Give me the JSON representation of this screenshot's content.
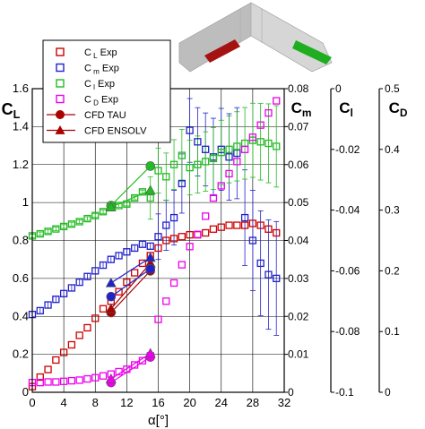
{
  "chart_data": {
    "type": "scatter",
    "xlabel": "α[°]",
    "x_ticks": [
      "0",
      "4",
      "8",
      "12",
      "16",
      "20",
      "24",
      "28",
      "32"
    ],
    "xlim": [
      0,
      32
    ],
    "axes": {
      "CL": {
        "label_main": "C",
        "label_sub": "L",
        "ylim": [
          0,
          1.6
        ],
        "ticks": [
          "0",
          "0.2",
          "0.4",
          "0.6",
          "0.8",
          "1",
          "1.2",
          "1.4",
          "1.6"
        ]
      },
      "Cm": {
        "label_main": "C",
        "label_sub": "m",
        "ylim": [
          0,
          0.08
        ],
        "ticks": [
          "0",
          "0.01",
          "0.02",
          "0.03",
          "0.04",
          "0.05",
          "0.06",
          "0.07",
          "0.08"
        ]
      },
      "Cl": {
        "label_main": "C",
        "label_sub": "l",
        "ylim": [
          -0.1,
          0
        ],
        "ticks": [
          "-0.1",
          "-0.08",
          "-0.06",
          "-0.04",
          "-0.02",
          "0"
        ]
      },
      "CD": {
        "label_main": "C",
        "label_sub": "D",
        "ylim": [
          0,
          0.5
        ],
        "ticks": [
          "0",
          "0.1",
          "0.2",
          "0.3",
          "0.4",
          "0.5"
        ]
      }
    },
    "legend": {
      "placement": "top-left",
      "entries": [
        {
          "main": "C",
          "sub": "L",
          "rest": " Exp",
          "color": "#cc0000",
          "marker": "square"
        },
        {
          "main": "C",
          "sub": "m",
          "rest": " Exp",
          "color": "#2222cc",
          "marker": "square"
        },
        {
          "main": "C",
          "sub": "l",
          "rest": " Exp",
          "color": "#22bb22",
          "marker": "square"
        },
        {
          "main": "C",
          "sub": "D",
          "rest": " Exp",
          "color": "#ee00ee",
          "marker": "square"
        },
        {
          "main": "CFD TAU",
          "sub": "",
          "rest": "",
          "color": "#aa0000",
          "marker": "circle-line"
        },
        {
          "main": "CFD ENSOLV",
          "sub": "",
          "rest": "",
          "color": "#aa0000",
          "marker": "triangle-line"
        }
      ]
    },
    "series": [
      {
        "name": "CL Exp",
        "axis": "CL",
        "color": "#cc0000",
        "marker": "square",
        "x": [
          0,
          1,
          2,
          3,
          4,
          5,
          6,
          7,
          8,
          9,
          10,
          11,
          12,
          13,
          14,
          15,
          16,
          17,
          18,
          19,
          20,
          21,
          22,
          23,
          24,
          25,
          26,
          27,
          28,
          29,
          30,
          31
        ],
        "y": [
          0.03,
          0.08,
          0.12,
          0.17,
          0.21,
          0.25,
          0.3,
          0.34,
          0.39,
          0.44,
          0.48,
          0.53,
          0.58,
          0.63,
          0.68,
          0.72,
          0.76,
          0.8,
          0.81,
          0.82,
          0.83,
          0.83,
          0.84,
          0.86,
          0.87,
          0.88,
          0.88,
          0.88,
          0.89,
          0.88,
          0.86,
          0.84
        ]
      },
      {
        "name": "Cm Exp",
        "axis": "Cm",
        "color": "#2222cc",
        "marker": "square",
        "x": [
          0,
          1,
          2,
          3,
          4,
          5,
          6,
          7,
          8,
          9,
          10,
          11,
          12,
          13,
          14,
          15,
          16,
          17,
          18,
          19,
          20,
          21,
          22,
          23,
          24,
          25,
          26,
          27,
          28,
          29,
          30,
          31
        ],
        "y": [
          0.0205,
          0.0215,
          0.023,
          0.0245,
          0.026,
          0.0275,
          0.029,
          0.0305,
          0.032,
          0.0335,
          0.035,
          0.036,
          0.037,
          0.038,
          0.039,
          0.0385,
          0.041,
          0.044,
          0.046,
          0.055,
          0.069,
          0.066,
          0.064,
          0.062,
          0.064,
          0.062,
          0.063,
          0.046,
          0.04,
          0.034,
          0.031,
          0.03
        ]
      },
      {
        "name": "Cl Exp",
        "axis": "Cl",
        "color": "#22bb22",
        "marker": "square",
        "x": [
          0,
          1,
          2,
          3,
          4,
          5,
          6,
          7,
          8,
          9,
          10,
          11,
          12,
          13,
          14,
          15,
          16,
          17,
          18,
          19,
          20,
          21,
          22,
          23,
          24,
          25,
          26,
          27,
          28,
          29,
          30,
          31
        ],
        "y": [
          -0.0485,
          -0.0478,
          -0.047,
          -0.0462,
          -0.0454,
          -0.0446,
          -0.0438,
          -0.0428,
          -0.0418,
          -0.0405,
          -0.0392,
          -0.0385,
          -0.038,
          -0.036,
          -0.034,
          -0.036,
          -0.027,
          -0.029,
          -0.025,
          -0.022,
          -0.026,
          -0.025,
          -0.024,
          -0.023,
          -0.021,
          -0.02,
          -0.019,
          -0.018,
          -0.017,
          -0.0175,
          -0.018,
          -0.019
        ]
      },
      {
        "name": "CD Exp",
        "axis": "CD",
        "color": "#ee00ee",
        "marker": "square",
        "x": [
          0,
          1,
          2,
          3,
          4,
          5,
          6,
          7,
          8,
          9,
          10,
          11,
          12,
          13,
          14,
          15,
          16,
          17,
          18,
          19,
          20,
          21,
          22,
          23,
          24,
          25,
          26,
          27,
          28,
          29,
          30,
          31
        ],
        "y": [
          0.016,
          0.016,
          0.017,
          0.017,
          0.018,
          0.019,
          0.02,
          0.022,
          0.024,
          0.027,
          0.03,
          0.034,
          0.038,
          0.045,
          0.052,
          0.06,
          0.12,
          0.15,
          0.18,
          0.21,
          0.24,
          0.26,
          0.29,
          0.32,
          0.34,
          0.36,
          0.38,
          0.4,
          0.42,
          0.44,
          0.46,
          0.48
        ]
      },
      {
        "name": "CFD TAU",
        "axis": "CL",
        "color": "#aa0000",
        "marker": "circle-line",
        "points": [
          {
            "x": 10,
            "y": 0.42
          },
          {
            "x": 15,
            "y": 0.64
          }
        ]
      },
      {
        "name": "CFD ENSOLV",
        "axis": "CL",
        "color": "#aa0000",
        "marker": "triangle-line",
        "points": [
          {
            "x": 10,
            "y": 0.44
          },
          {
            "x": 15,
            "y": 0.68
          }
        ]
      },
      {
        "name": "Cm CFD TAU",
        "axis": "Cm",
        "color": "#2222cc",
        "marker": "circle-line",
        "points": [
          {
            "x": 10,
            "y": 0.0252
          },
          {
            "x": 15,
            "y": 0.0325
          }
        ]
      },
      {
        "name": "Cm CFD ENSOLV",
        "axis": "Cm",
        "color": "#2222cc",
        "marker": "triangle-line",
        "points": [
          {
            "x": 10,
            "y": 0.0288
          },
          {
            "x": 15,
            "y": 0.0355
          }
        ]
      },
      {
        "name": "Cl CFD TAU",
        "axis": "Cl",
        "color": "#22bb22",
        "marker": "circle-line",
        "points": [
          {
            "x": 10,
            "y": -0.0385
          },
          {
            "x": 15,
            "y": -0.0255
          }
        ]
      },
      {
        "name": "Cl CFD ENSOLV",
        "axis": "Cl",
        "color": "#22bb22",
        "marker": "triangle-line",
        "points": [
          {
            "x": 10,
            "y": -0.039
          },
          {
            "x": 15,
            "y": -0.0335
          }
        ]
      },
      {
        "name": "CD CFD TAU",
        "axis": "CD",
        "color": "#ee00ee",
        "marker": "circle-line",
        "points": [
          {
            "x": 10,
            "y": 0.016
          },
          {
            "x": 15,
            "y": 0.058
          }
        ]
      },
      {
        "name": "CD CFD ENSOLV",
        "axis": "CD",
        "color": "#ee00ee",
        "marker": "triangle-line",
        "points": [
          {
            "x": 10,
            "y": 0.022
          },
          {
            "x": 15,
            "y": 0.064
          }
        ]
      }
    ],
    "grid": true,
    "inset": {
      "description_colors": [
        "#c8c8c8",
        "#a01010",
        "#20b020"
      ]
    }
  }
}
